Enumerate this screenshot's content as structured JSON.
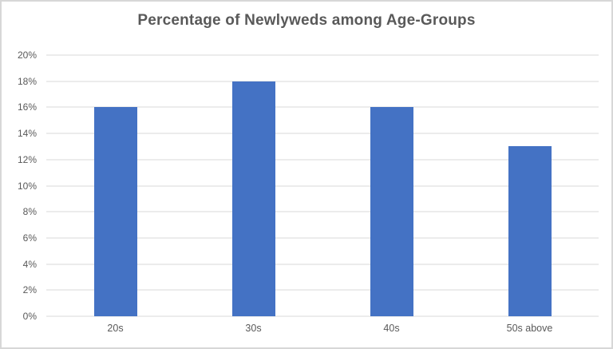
{
  "chart_data": {
    "type": "bar",
    "title": "Percentage of Newlyweds among Age-Groups",
    "categories": [
      "20s",
      "30s",
      "40s",
      "50s above"
    ],
    "values": [
      16,
      18,
      16,
      13
    ],
    "unit": "%",
    "xlabel": "",
    "ylabel": "",
    "ylim": [
      0,
      20
    ],
    "ytick_step": 2,
    "ytick_labels": [
      "0%",
      "2%",
      "4%",
      "6%",
      "8%",
      "10%",
      "12%",
      "14%",
      "16%",
      "18%",
      "20%"
    ],
    "grid": true,
    "legend": false,
    "data_labels": false
  },
  "colors": {
    "bar": "#4472C4",
    "gridline": "#D9D9D9",
    "axis_text": "#595959",
    "title_text": "#595959",
    "frame_border": "#D7D7D7",
    "background": "#FFFFFF"
  }
}
